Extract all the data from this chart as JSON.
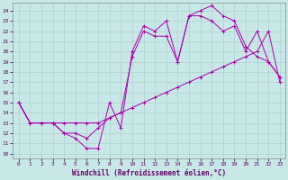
{
  "xlabel": "Windchill (Refroidissement éolien,°C)",
  "bg_color": "#c8e8e8",
  "grid_color": "#b0d0d0",
  "line_color": "#aa00aa",
  "xlim": [
    -0.5,
    23.5
  ],
  "ylim": [
    9.5,
    24.8
  ],
  "xticks": [
    0,
    1,
    2,
    3,
    4,
    5,
    6,
    7,
    8,
    9,
    10,
    11,
    12,
    13,
    14,
    15,
    16,
    17,
    18,
    19,
    20,
    21,
    22,
    23
  ],
  "yticks": [
    10,
    11,
    12,
    13,
    14,
    15,
    16,
    17,
    18,
    19,
    20,
    21,
    22,
    23,
    24
  ],
  "line1_x": [
    0,
    1,
    2,
    3,
    4,
    5,
    6,
    7,
    8,
    9,
    10,
    11,
    12,
    13,
    14,
    15,
    16,
    17,
    18,
    19,
    20,
    21,
    22,
    23
  ],
  "line1_y": [
    15.0,
    13.0,
    13.0,
    13.0,
    12.0,
    11.5,
    10.5,
    10.5,
    15.0,
    12.5,
    20.0,
    22.5,
    22.0,
    23.0,
    19.0,
    23.5,
    24.0,
    24.5,
    23.5,
    23.0,
    20.5,
    19.5,
    19.0,
    17.5
  ],
  "line2_x": [
    0,
    1,
    2,
    3,
    4,
    5,
    6,
    7,
    8,
    9,
    10,
    11,
    12,
    13,
    14,
    15,
    16,
    17,
    18,
    19,
    20,
    21,
    22,
    23
  ],
  "line2_y": [
    15.0,
    13.0,
    13.0,
    13.0,
    12.0,
    12.0,
    11.5,
    12.5,
    13.5,
    14.0,
    19.5,
    22.0,
    21.5,
    21.5,
    19.0,
    23.5,
    23.5,
    23.0,
    22.0,
    22.5,
    20.0,
    22.0,
    19.0,
    17.5
  ],
  "line3_x": [
    0,
    1,
    2,
    3,
    4,
    5,
    6,
    7,
    8,
    9,
    10,
    11,
    12,
    13,
    14,
    15,
    16,
    17,
    18,
    19,
    20,
    21,
    22,
    23
  ],
  "line3_y": [
    15.0,
    13.0,
    13.0,
    13.0,
    13.0,
    13.0,
    13.0,
    13.0,
    13.5,
    14.0,
    14.5,
    15.0,
    15.5,
    16.0,
    16.5,
    17.0,
    17.5,
    18.0,
    18.5,
    19.0,
    19.5,
    20.0,
    22.0,
    17.0
  ]
}
